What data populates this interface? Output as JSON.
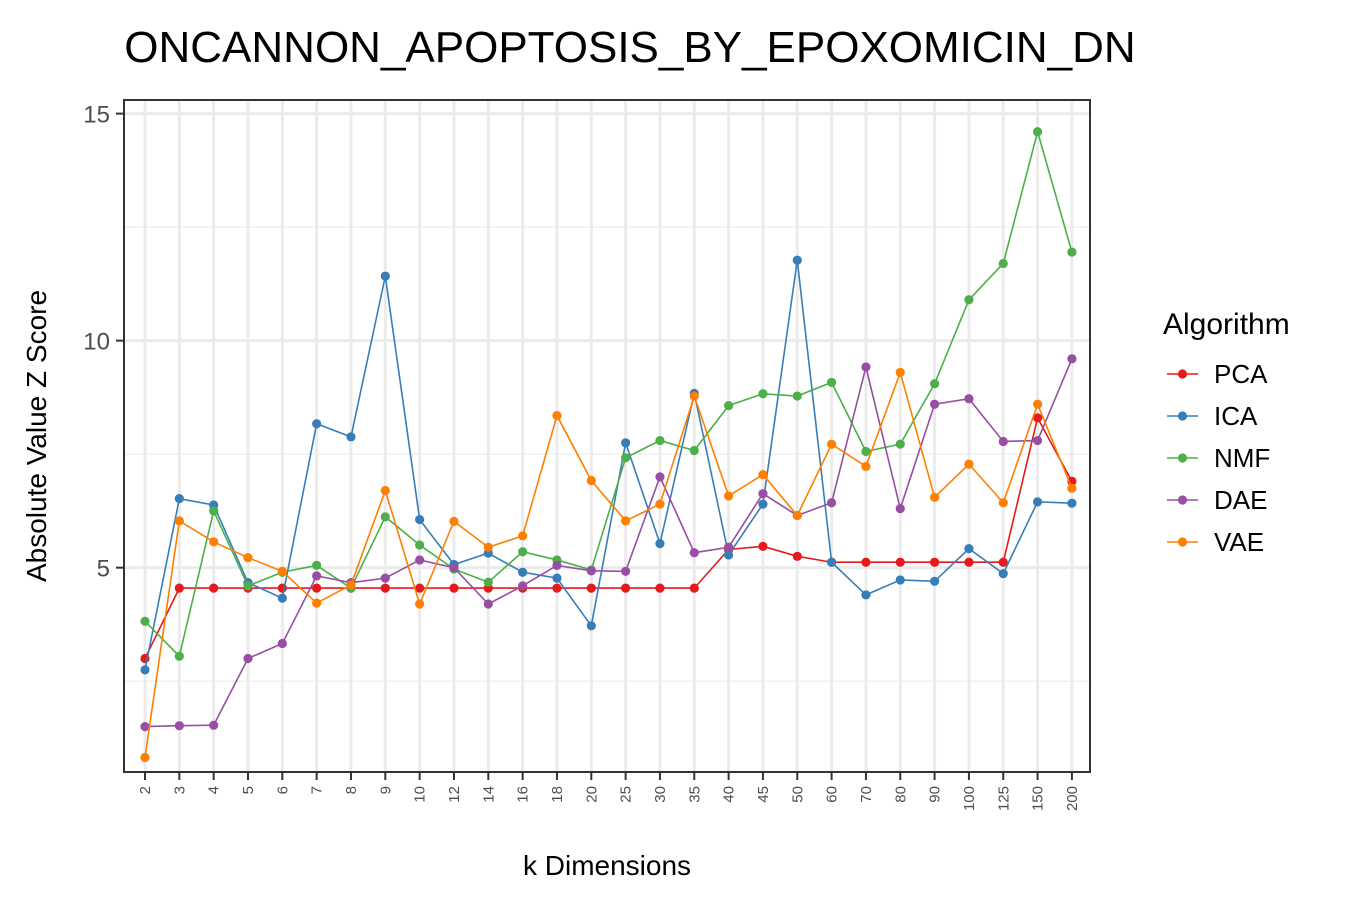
{
  "chart_data": {
    "type": "line",
    "title": "ONCANNON_APOPTOSIS_BY_EPOXOMICIN_DN",
    "xlabel": "k Dimensions",
    "ylabel": "Absolute Value Z Score",
    "categories": [
      "2",
      "3",
      "4",
      "5",
      "6",
      "7",
      "8",
      "9",
      "10",
      "12",
      "14",
      "16",
      "18",
      "20",
      "25",
      "30",
      "35",
      "40",
      "45",
      "50",
      "60",
      "70",
      "80",
      "90",
      "100",
      "125",
      "150",
      "200"
    ],
    "y_ticks": [
      "5",
      "10",
      "15"
    ],
    "ylim": [
      0.5,
      15.3
    ],
    "grid": true,
    "legend": {
      "title": "Algorithm",
      "placement": "right"
    },
    "series": [
      {
        "name": "PCA",
        "color": "#e41a1c",
        "values": [
          3.0,
          4.55,
          4.55,
          4.55,
          4.55,
          4.55,
          4.55,
          4.55,
          4.55,
          4.55,
          4.55,
          4.55,
          4.55,
          4.55,
          4.55,
          4.55,
          4.55,
          5.4,
          5.47,
          5.25,
          5.12,
          5.12,
          5.12,
          5.12,
          5.12,
          5.12,
          8.3,
          6.9
        ]
      },
      {
        "name": "ICA",
        "color": "#377eb8",
        "values": [
          2.75,
          6.52,
          6.38,
          4.67,
          4.33,
          8.17,
          7.88,
          11.42,
          6.06,
          5.07,
          5.32,
          4.9,
          4.77,
          3.72,
          7.75,
          5.53,
          8.84,
          5.28,
          6.4,
          11.77,
          5.12,
          4.4,
          4.73,
          4.7,
          5.42,
          4.87,
          6.45,
          6.42
        ]
      },
      {
        "name": "NMF",
        "color": "#4daf4a",
        "values": [
          3.82,
          3.05,
          6.25,
          4.6,
          4.9,
          5.05,
          4.55,
          6.12,
          5.5,
          4.97,
          4.68,
          5.35,
          5.17,
          4.95,
          7.42,
          7.8,
          7.58,
          8.57,
          8.83,
          8.78,
          9.08,
          7.56,
          7.72,
          9.05,
          10.9,
          11.7,
          14.6,
          11.95
        ]
      },
      {
        "name": "DAE",
        "color": "#984ea3",
        "values": [
          1.5,
          1.52,
          1.53,
          3.0,
          3.33,
          4.82,
          4.67,
          4.77,
          5.17,
          5.0,
          4.2,
          4.6,
          5.05,
          4.93,
          4.92,
          7.0,
          5.33,
          5.45,
          6.63,
          6.15,
          6.43,
          9.42,
          6.3,
          8.6,
          8.72,
          7.78,
          7.8,
          9.6
        ]
      },
      {
        "name": "VAE",
        "color": "#ff7f00",
        "values": [
          0.82,
          6.03,
          5.57,
          5.22,
          4.92,
          4.22,
          4.62,
          6.7,
          4.2,
          6.02,
          5.45,
          5.7,
          8.35,
          6.92,
          6.03,
          6.4,
          8.78,
          6.58,
          7.05,
          6.15,
          7.72,
          7.23,
          9.3,
          6.55,
          7.28,
          6.43,
          8.6,
          6.75
        ]
      }
    ]
  }
}
